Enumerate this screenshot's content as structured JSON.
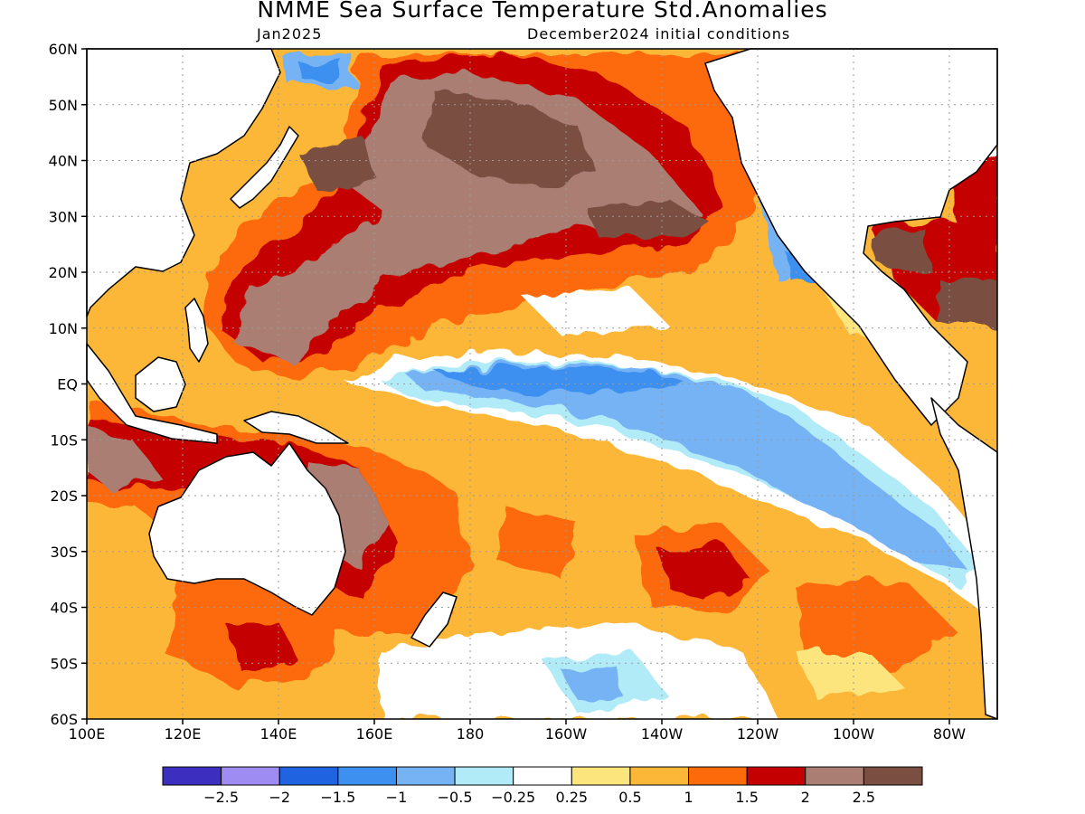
{
  "header": {
    "title": "NMME Sea Surface Temperature Std.Anomalies",
    "valid_month": "Jan2025",
    "initial_conditions": "December2024 initial conditions"
  },
  "map": {
    "lon_range": [
      100,
      290
    ],
    "lat_range": [
      -60,
      60
    ],
    "lat_ticks": [
      {
        "lat": 60,
        "label": "60N"
      },
      {
        "lat": 50,
        "label": "50N"
      },
      {
        "lat": 40,
        "label": "40N"
      },
      {
        "lat": 30,
        "label": "30N"
      },
      {
        "lat": 20,
        "label": "20N"
      },
      {
        "lat": 10,
        "label": "10N"
      },
      {
        "lat": 0,
        "label": "EQ"
      },
      {
        "lat": -10,
        "label": "10S"
      },
      {
        "lat": -20,
        "label": "20S"
      },
      {
        "lat": -30,
        "label": "30S"
      },
      {
        "lat": -40,
        "label": "40S"
      },
      {
        "lat": -50,
        "label": "50S"
      },
      {
        "lat": -60,
        "label": "60S"
      }
    ],
    "lon_ticks": [
      {
        "lon": 100,
        "label": "100E"
      },
      {
        "lon": 120,
        "label": "120E"
      },
      {
        "lon": 140,
        "label": "140E"
      },
      {
        "lon": 160,
        "label": "160E"
      },
      {
        "lon": 180,
        "label": "180"
      },
      {
        "lon": 200,
        "label": "160W"
      },
      {
        "lon": 220,
        "label": "140W"
      },
      {
        "lon": 240,
        "label": "120W"
      },
      {
        "lon": 260,
        "label": "100W"
      },
      {
        "lon": 280,
        "label": "80W"
      }
    ]
  },
  "legend": {
    "colors": [
      "#3c2fbf",
      "#9f8cf2",
      "#1f63e0",
      "#3d8ff0",
      "#76b3f5",
      "#b1ebf8",
      "#ffffff",
      "#fde57d",
      "#fdb738",
      "#fc6a09",
      "#c50000",
      "#aa7e73",
      "#7a4f42"
    ],
    "labels": [
      "−2.5",
      "−2",
      "−1.5",
      "−1",
      "−0.5",
      "−0.25",
      "0.25",
      "0.5",
      "1",
      "1.5",
      "2",
      "2.5"
    ]
  }
}
